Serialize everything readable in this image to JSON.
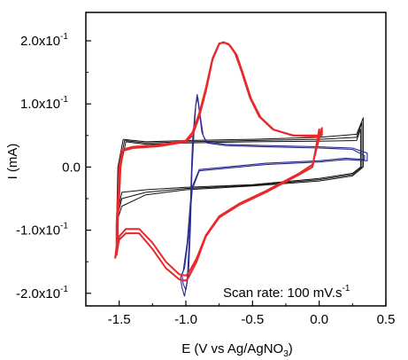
{
  "chart_data": {
    "type": "line",
    "title": "",
    "xlabel": "E (V vs Ag/AgNO",
    "xlabel_sub": "3",
    "xlabel_close": ")",
    "ylabel": "I (mA)",
    "xlim": [
      -1.75,
      0.5
    ],
    "ylim": [
      -0.22,
      0.245
    ],
    "x_ticks": [
      {
        "v": -1.5,
        "label": "-1.5"
      },
      {
        "v": -1.0,
        "label": "-1.0"
      },
      {
        "v": -0.5,
        "label": "-0.5"
      },
      {
        "v": 0.0,
        "label": "0.0"
      },
      {
        "v": 0.5,
        "label": "0.5"
      }
    ],
    "y_ticks": [
      {
        "v": 0.2,
        "base": "2.0x10",
        "exp": "-1"
      },
      {
        "v": 0.1,
        "base": "1.0x10",
        "exp": "-1"
      },
      {
        "v": 0.0,
        "base": "0.0",
        "exp": ""
      },
      {
        "v": -0.1,
        "base": "-1.0x10",
        "exp": "-1"
      },
      {
        "v": -0.2,
        "base": "-2.0x10",
        "exp": "-1"
      }
    ],
    "x_minor_step": 0.25,
    "y_minor_step": 0.05,
    "annotation": {
      "text": "Scan rate: 100 mV.s",
      "exp": "-1"
    },
    "colors": {
      "black": "#111111",
      "red": "#e8282a",
      "blue": "#2b2b8f"
    },
    "series": [
      {
        "color": "black",
        "width": 1.0,
        "points": [
          [
            -1.45,
            0.04
          ],
          [
            -1.3,
            0.036
          ],
          [
            -1.0,
            0.038
          ],
          [
            -0.5,
            0.04
          ],
          [
            0.0,
            0.041
          ],
          [
            0.28,
            0.042
          ],
          [
            0.31,
            0.06
          ],
          [
            0.31,
            0.0
          ],
          [
            0.25,
            -0.01
          ],
          [
            0.0,
            -0.018
          ],
          [
            -0.5,
            -0.028
          ],
          [
            -1.0,
            -0.032
          ],
          [
            -1.3,
            -0.036
          ],
          [
            -1.48,
            -0.04
          ],
          [
            -1.5,
            -0.06
          ],
          [
            -1.49,
            0.0
          ],
          [
            -1.45,
            0.04
          ]
        ]
      },
      {
        "color": "black",
        "width": 1.0,
        "points": [
          [
            -1.46,
            0.042
          ],
          [
            -1.3,
            0.038
          ],
          [
            -1.0,
            0.04
          ],
          [
            -0.5,
            0.042
          ],
          [
            0.0,
            0.044
          ],
          [
            0.28,
            0.047
          ],
          [
            0.32,
            0.07
          ],
          [
            0.32,
            0.0
          ],
          [
            0.25,
            -0.012
          ],
          [
            0.0,
            -0.02
          ],
          [
            -0.5,
            -0.029
          ],
          [
            -1.0,
            -0.034
          ],
          [
            -1.3,
            -0.04
          ],
          [
            -1.48,
            -0.05
          ],
          [
            -1.51,
            -0.075
          ],
          [
            -1.5,
            0.0
          ],
          [
            -1.46,
            0.042
          ]
        ]
      },
      {
        "color": "black",
        "width": 1.0,
        "points": [
          [
            -1.47,
            0.044
          ],
          [
            -1.3,
            0.04
          ],
          [
            -1.0,
            0.042
          ],
          [
            -0.5,
            0.044
          ],
          [
            0.0,
            0.047
          ],
          [
            0.28,
            0.052
          ],
          [
            0.33,
            0.078
          ],
          [
            0.33,
            0.0
          ],
          [
            0.25,
            -0.014
          ],
          [
            0.0,
            -0.022
          ],
          [
            -0.5,
            -0.03
          ],
          [
            -1.0,
            -0.036
          ],
          [
            -1.3,
            -0.044
          ],
          [
            -1.48,
            -0.062
          ],
          [
            -1.52,
            -0.088
          ],
          [
            -1.51,
            0.0
          ],
          [
            -1.47,
            0.044
          ]
        ]
      },
      {
        "color": "blue",
        "width": 1.1,
        "points": [
          [
            -1.01,
            -0.205
          ],
          [
            -0.99,
            -0.18
          ],
          [
            -0.97,
            -0.1
          ],
          [
            -0.96,
            -0.02
          ],
          [
            -0.95,
            0.04
          ],
          [
            -0.93,
            0.09
          ],
          [
            -0.915,
            0.115
          ],
          [
            -0.9,
            0.09
          ],
          [
            -0.88,
            0.055
          ],
          [
            -0.85,
            0.04
          ],
          [
            -0.7,
            0.036
          ],
          [
            -0.4,
            0.034
          ],
          [
            0.0,
            0.032
          ],
          [
            0.25,
            0.03
          ],
          [
            0.36,
            0.022
          ],
          [
            0.36,
            0.01
          ],
          [
            0.2,
            0.012
          ],
          [
            0.0,
            0.008
          ],
          [
            -0.4,
            0.004
          ],
          [
            -0.7,
            -0.002
          ],
          [
            -0.9,
            -0.006
          ],
          [
            -0.96,
            -0.04
          ],
          [
            -0.99,
            -0.12
          ],
          [
            -1.02,
            -0.165
          ],
          [
            -1.04,
            -0.175
          ],
          [
            -1.03,
            -0.19
          ],
          [
            -1.01,
            -0.205
          ]
        ]
      },
      {
        "color": "blue",
        "width": 1.1,
        "points": [
          [
            -1.0,
            -0.195
          ],
          [
            -0.98,
            -0.17
          ],
          [
            -0.965,
            -0.09
          ],
          [
            -0.955,
            -0.01
          ],
          [
            -0.94,
            0.05
          ],
          [
            -0.925,
            0.1
          ],
          [
            -0.91,
            0.11
          ],
          [
            -0.895,
            0.085
          ],
          [
            -0.87,
            0.05
          ],
          [
            -0.84,
            0.038
          ],
          [
            -0.7,
            0.034
          ],
          [
            -0.4,
            0.032
          ],
          [
            0.0,
            0.03
          ],
          [
            0.25,
            0.028
          ],
          [
            0.34,
            0.018
          ],
          [
            0.34,
            0.012
          ],
          [
            0.2,
            0.014
          ],
          [
            0.0,
            0.01
          ],
          [
            -0.4,
            0.006
          ],
          [
            -0.7,
            0.0
          ],
          [
            -0.9,
            -0.004
          ],
          [
            -0.95,
            -0.03
          ],
          [
            -0.98,
            -0.11
          ],
          [
            -1.01,
            -0.16
          ],
          [
            -1.03,
            -0.17
          ],
          [
            -1.02,
            -0.185
          ],
          [
            -1.0,
            -0.195
          ]
        ]
      },
      {
        "color": "red",
        "width": 2.0,
        "points": [
          [
            -1.53,
            -0.145
          ],
          [
            -1.52,
            -0.125
          ],
          [
            -1.52,
            -0.09
          ],
          [
            -1.51,
            -0.05
          ],
          [
            -1.5,
            0.0
          ],
          [
            -1.48,
            0.025
          ],
          [
            -1.4,
            0.03
          ],
          [
            -1.2,
            0.033
          ],
          [
            -1.0,
            0.04
          ],
          [
            -0.95,
            0.05
          ],
          [
            -0.9,
            0.08
          ],
          [
            -0.85,
            0.12
          ],
          [
            -0.8,
            0.17
          ],
          [
            -0.75,
            0.195
          ],
          [
            -0.72,
            0.198
          ],
          [
            -0.68,
            0.195
          ],
          [
            -0.63,
            0.18
          ],
          [
            -0.58,
            0.15
          ],
          [
            -0.52,
            0.11
          ],
          [
            -0.45,
            0.08
          ],
          [
            -0.35,
            0.06
          ],
          [
            -0.2,
            0.05
          ],
          [
            0.0,
            0.048
          ],
          [
            0.0,
            0.06
          ],
          [
            -0.05,
            0.0
          ],
          [
            -0.15,
            -0.012
          ],
          [
            -0.4,
            -0.04
          ],
          [
            -0.6,
            -0.06
          ],
          [
            -0.75,
            -0.08
          ],
          [
            -0.85,
            -0.11
          ],
          [
            -0.92,
            -0.15
          ],
          [
            -0.98,
            -0.175
          ],
          [
            -1.0,
            -0.18
          ],
          [
            -1.05,
            -0.178
          ],
          [
            -1.15,
            -0.16
          ],
          [
            -1.25,
            -0.13
          ],
          [
            -1.35,
            -0.105
          ],
          [
            -1.45,
            -0.105
          ],
          [
            -1.5,
            -0.115
          ],
          [
            -1.53,
            -0.145
          ]
        ]
      },
      {
        "color": "red",
        "width": 2.0,
        "points": [
          [
            -1.52,
            -0.14
          ],
          [
            -1.51,
            -0.12
          ],
          [
            -1.51,
            -0.085
          ],
          [
            -1.5,
            -0.045
          ],
          [
            -1.49,
            0.0
          ],
          [
            -1.47,
            0.028
          ],
          [
            -1.4,
            0.032
          ],
          [
            -1.2,
            0.035
          ],
          [
            -1.0,
            0.042
          ],
          [
            -0.95,
            0.055
          ],
          [
            -0.9,
            0.085
          ],
          [
            -0.85,
            0.125
          ],
          [
            -0.8,
            0.172
          ],
          [
            -0.75,
            0.196
          ],
          [
            -0.71,
            0.197
          ],
          [
            -0.67,
            0.193
          ],
          [
            -0.62,
            0.178
          ],
          [
            -0.57,
            0.147
          ],
          [
            -0.51,
            0.108
          ],
          [
            -0.44,
            0.079
          ],
          [
            -0.34,
            0.059
          ],
          [
            -0.19,
            0.05
          ],
          [
            0.02,
            0.05
          ],
          [
            0.02,
            0.062
          ],
          [
            -0.05,
            0.004
          ],
          [
            -0.15,
            -0.01
          ],
          [
            -0.4,
            -0.038
          ],
          [
            -0.6,
            -0.058
          ],
          [
            -0.75,
            -0.078
          ],
          [
            -0.85,
            -0.108
          ],
          [
            -0.92,
            -0.145
          ],
          [
            -0.98,
            -0.168
          ],
          [
            -1.0,
            -0.172
          ],
          [
            -1.05,
            -0.17
          ],
          [
            -1.15,
            -0.15
          ],
          [
            -1.25,
            -0.12
          ],
          [
            -1.35,
            -0.098
          ],
          [
            -1.45,
            -0.098
          ],
          [
            -1.5,
            -0.11
          ],
          [
            -1.52,
            -0.14
          ]
        ]
      }
    ]
  }
}
